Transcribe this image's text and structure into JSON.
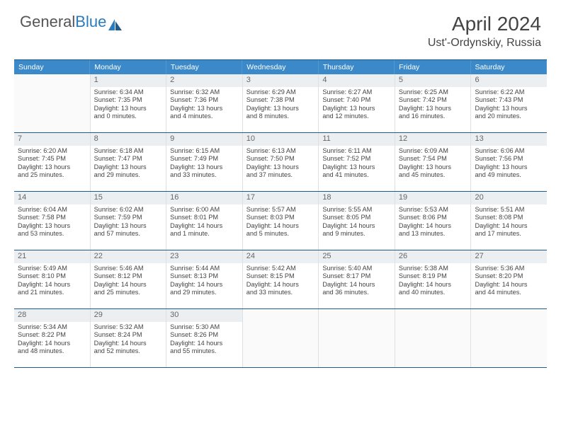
{
  "brand": {
    "part1": "General",
    "part2": "Blue"
  },
  "title": "April 2024",
  "location": "Ust'-Ordynskiy, Russia",
  "colors": {
    "header_bg": "#3b89c8",
    "header_text": "#ffffff",
    "border": "#1e5a8a",
    "daynum_bg": "#eceff2",
    "text": "#444444",
    "logo_gray": "#555555",
    "logo_blue": "#2b7bbf"
  },
  "dow": [
    "Sunday",
    "Monday",
    "Tuesday",
    "Wednesday",
    "Thursday",
    "Friday",
    "Saturday"
  ],
  "weeks": [
    [
      null,
      {
        "n": "1",
        "sr": "6:34 AM",
        "ss": "7:35 PM",
        "dl": "13 hours and 0 minutes."
      },
      {
        "n": "2",
        "sr": "6:32 AM",
        "ss": "7:36 PM",
        "dl": "13 hours and 4 minutes."
      },
      {
        "n": "3",
        "sr": "6:29 AM",
        "ss": "7:38 PM",
        "dl": "13 hours and 8 minutes."
      },
      {
        "n": "4",
        "sr": "6:27 AM",
        "ss": "7:40 PM",
        "dl": "13 hours and 12 minutes."
      },
      {
        "n": "5",
        "sr": "6:25 AM",
        "ss": "7:42 PM",
        "dl": "13 hours and 16 minutes."
      },
      {
        "n": "6",
        "sr": "6:22 AM",
        "ss": "7:43 PM",
        "dl": "13 hours and 20 minutes."
      }
    ],
    [
      {
        "n": "7",
        "sr": "6:20 AM",
        "ss": "7:45 PM",
        "dl": "13 hours and 25 minutes."
      },
      {
        "n": "8",
        "sr": "6:18 AM",
        "ss": "7:47 PM",
        "dl": "13 hours and 29 minutes."
      },
      {
        "n": "9",
        "sr": "6:15 AM",
        "ss": "7:49 PM",
        "dl": "13 hours and 33 minutes."
      },
      {
        "n": "10",
        "sr": "6:13 AM",
        "ss": "7:50 PM",
        "dl": "13 hours and 37 minutes."
      },
      {
        "n": "11",
        "sr": "6:11 AM",
        "ss": "7:52 PM",
        "dl": "13 hours and 41 minutes."
      },
      {
        "n": "12",
        "sr": "6:09 AM",
        "ss": "7:54 PM",
        "dl": "13 hours and 45 minutes."
      },
      {
        "n": "13",
        "sr": "6:06 AM",
        "ss": "7:56 PM",
        "dl": "13 hours and 49 minutes."
      }
    ],
    [
      {
        "n": "14",
        "sr": "6:04 AM",
        "ss": "7:58 PM",
        "dl": "13 hours and 53 minutes."
      },
      {
        "n": "15",
        "sr": "6:02 AM",
        "ss": "7:59 PM",
        "dl": "13 hours and 57 minutes."
      },
      {
        "n": "16",
        "sr": "6:00 AM",
        "ss": "8:01 PM",
        "dl": "14 hours and 1 minute."
      },
      {
        "n": "17",
        "sr": "5:57 AM",
        "ss": "8:03 PM",
        "dl": "14 hours and 5 minutes."
      },
      {
        "n": "18",
        "sr": "5:55 AM",
        "ss": "8:05 PM",
        "dl": "14 hours and 9 minutes."
      },
      {
        "n": "19",
        "sr": "5:53 AM",
        "ss": "8:06 PM",
        "dl": "14 hours and 13 minutes."
      },
      {
        "n": "20",
        "sr": "5:51 AM",
        "ss": "8:08 PM",
        "dl": "14 hours and 17 minutes."
      }
    ],
    [
      {
        "n": "21",
        "sr": "5:49 AM",
        "ss": "8:10 PM",
        "dl": "14 hours and 21 minutes."
      },
      {
        "n": "22",
        "sr": "5:46 AM",
        "ss": "8:12 PM",
        "dl": "14 hours and 25 minutes."
      },
      {
        "n": "23",
        "sr": "5:44 AM",
        "ss": "8:13 PM",
        "dl": "14 hours and 29 minutes."
      },
      {
        "n": "24",
        "sr": "5:42 AM",
        "ss": "8:15 PM",
        "dl": "14 hours and 33 minutes."
      },
      {
        "n": "25",
        "sr": "5:40 AM",
        "ss": "8:17 PM",
        "dl": "14 hours and 36 minutes."
      },
      {
        "n": "26",
        "sr": "5:38 AM",
        "ss": "8:19 PM",
        "dl": "14 hours and 40 minutes."
      },
      {
        "n": "27",
        "sr": "5:36 AM",
        "ss": "8:20 PM",
        "dl": "14 hours and 44 minutes."
      }
    ],
    [
      {
        "n": "28",
        "sr": "5:34 AM",
        "ss": "8:22 PM",
        "dl": "14 hours and 48 minutes."
      },
      {
        "n": "29",
        "sr": "5:32 AM",
        "ss": "8:24 PM",
        "dl": "14 hours and 52 minutes."
      },
      {
        "n": "30",
        "sr": "5:30 AM",
        "ss": "8:26 PM",
        "dl": "14 hours and 55 minutes."
      },
      null,
      null,
      null,
      null
    ]
  ],
  "labels": {
    "sunrise": "Sunrise:",
    "sunset": "Sunset:",
    "daylight": "Daylight:"
  }
}
